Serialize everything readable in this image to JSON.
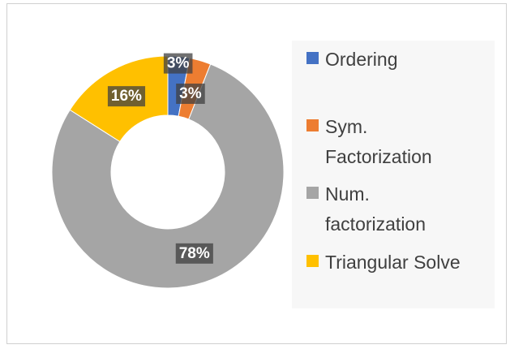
{
  "chart_data": {
    "type": "donut",
    "categories": [
      "Ordering",
      "Sym. Factorization",
      "Num. factorization",
      "Triangular Solve"
    ],
    "values": [
      3,
      3,
      78,
      16
    ],
    "value_labels": [
      "3%",
      "3%",
      "78%",
      "16%"
    ],
    "colors": [
      "#4472c4",
      "#ed7d31",
      "#a5a5a5",
      "#ffc000"
    ],
    "legend": "right"
  }
}
